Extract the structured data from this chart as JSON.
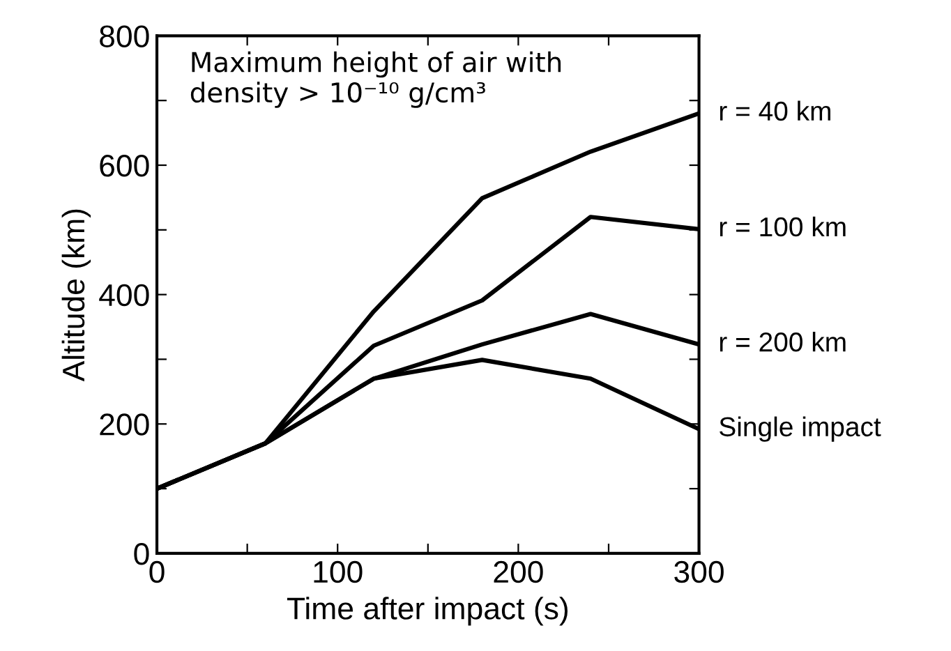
{
  "chart_data": {
    "type": "line",
    "title": "Maximum height of air with\ndensity > 10⁻¹⁰ g/cm³",
    "xlabel": "Time after impact (s)",
    "ylabel": "Altitude (km)",
    "x": [
      0,
      60,
      120,
      180,
      240,
      300
    ],
    "series": [
      {
        "name": "r = 40 km",
        "color": "#000000",
        "values": [
          100,
          170,
          374,
          549,
          621,
          680
        ]
      },
      {
        "name": "r = 100 km",
        "color": "#000000",
        "values": [
          100,
          170,
          321,
          391,
          520,
          501
        ]
      },
      {
        "name": "r = 200 km",
        "color": "#000000",
        "values": [
          100,
          170,
          270,
          323,
          370,
          323
        ]
      },
      {
        "name": "Single impact",
        "color": "#000000",
        "values": [
          100,
          170,
          270,
          299,
          270,
          192
        ]
      }
    ],
    "xlim": [
      0,
      300
    ],
    "ylim": [
      0,
      800
    ],
    "xticks": [
      0,
      {
        "value": 50,
        "label": null
      },
      100,
      {
        "value": 150,
        "label": null
      },
      200,
      {
        "value": 250,
        "label": null
      },
      300
    ],
    "yticks": [
      0,
      {
        "value": 100,
        "label": null
      },
      200,
      {
        "value": 300,
        "label": null
      },
      400,
      {
        "value": 500,
        "label": null
      },
      600,
      {
        "value": 700,
        "label": null
      },
      800
    ],
    "grid": false,
    "legend": "right",
    "line_style": "solid",
    "marker": "none"
  }
}
